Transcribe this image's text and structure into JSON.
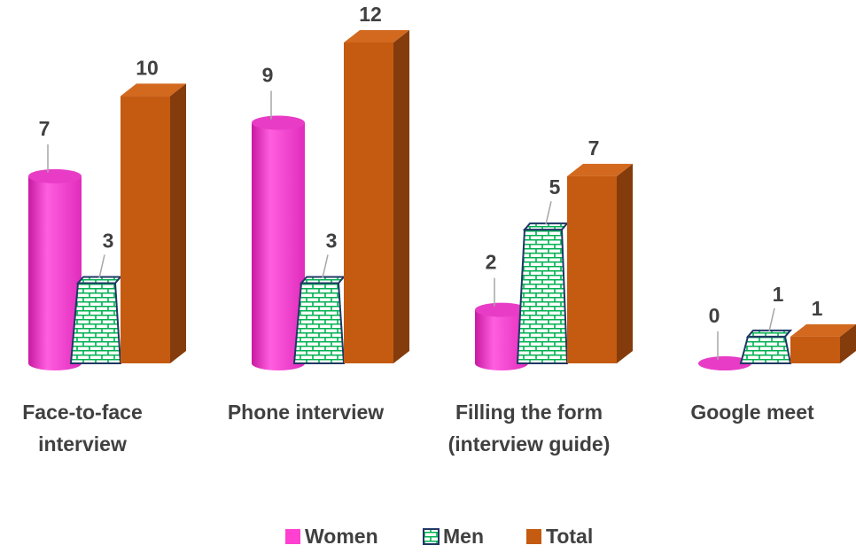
{
  "chart_data": {
    "type": "bar3d",
    "categories": [
      "Face-to-face interview",
      "Phone interview",
      "Filling the form (interview guide)",
      "Google meet"
    ],
    "series": [
      {
        "name": "Women",
        "color": "#ff40d0",
        "values": [
          7,
          9,
          2,
          0
        ]
      },
      {
        "name": "Men",
        "color": "#00b050",
        "values": [
          3,
          3,
          5,
          1
        ]
      },
      {
        "name": "Total",
        "color": "#c55a11",
        "values": [
          10,
          12,
          7,
          1
        ]
      }
    ],
    "legend": "bottom"
  }
}
